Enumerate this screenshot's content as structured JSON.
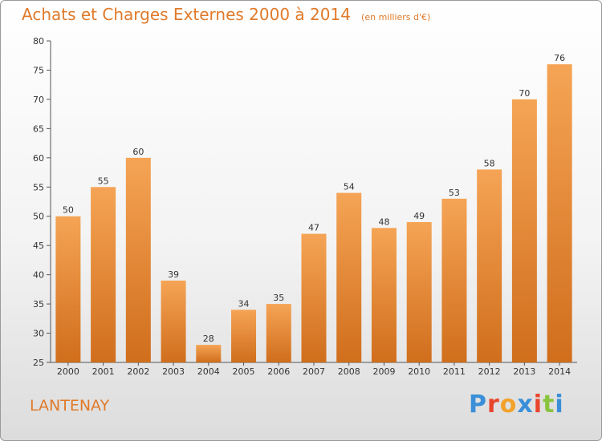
{
  "header": {
    "title": "Achats et Charges Externes 2000 à 2014",
    "subtitle": "(en milliers d'€)"
  },
  "footer": {
    "commune": "LANTENAY",
    "logo_letters": [
      "P",
      "r",
      "o",
      "x",
      "i",
      "t",
      "i"
    ],
    "logo_colors": [
      "#3a8fd8",
      "#e8452c",
      "#f2a22b",
      "#3a8fd8",
      "#e8452c",
      "#8ac43f",
      "#3a8fd8"
    ]
  },
  "colors": {
    "bar_light": "#f5a455",
    "bar_dark": "#d06e1c",
    "title": "#e07a2a"
  },
  "chart_data": {
    "type": "bar",
    "categories": [
      "2000",
      "2001",
      "2002",
      "2003",
      "2004",
      "2005",
      "2006",
      "2007",
      "2008",
      "2009",
      "2010",
      "2011",
      "2012",
      "2013",
      "2014"
    ],
    "values": [
      50,
      55,
      60,
      39,
      28,
      34,
      35,
      47,
      54,
      48,
      49,
      53,
      58,
      70,
      76
    ],
    "ylim": [
      25,
      80
    ],
    "yticks": [
      25,
      30,
      35,
      40,
      45,
      50,
      55,
      60,
      65,
      70,
      75,
      80
    ],
    "grid": false,
    "data_labels": true
  }
}
